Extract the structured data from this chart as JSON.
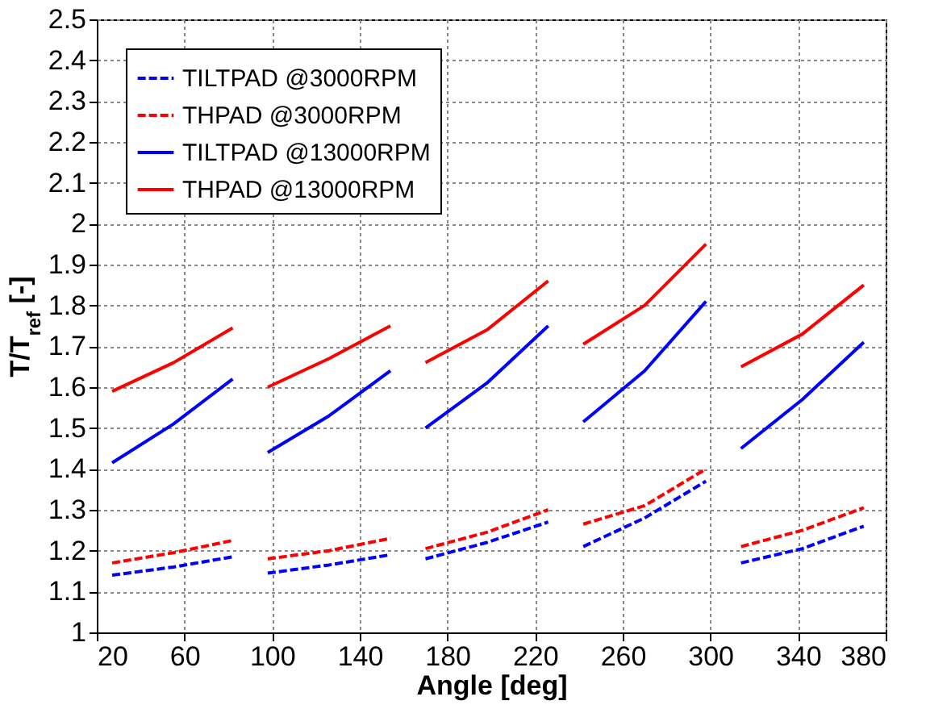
{
  "chart_data": {
    "type": "line",
    "xlabel": "Angle [deg]",
    "ylabel": "T/T$_{ref}$ [-]",
    "x": [
      27,
      55,
      82,
      90,
      98,
      126,
      154,
      162,
      170,
      198,
      226,
      234,
      242,
      270,
      298,
      306,
      314,
      342,
      370
    ],
    "series": [
      {
        "name": "TILTPAD @3000RPM",
        "color": "#0000ff",
        "line_style": "dashed",
        "values": [
          1.14,
          1.16,
          1.185,
          null,
          1.145,
          1.165,
          1.19,
          null,
          1.18,
          1.22,
          1.27,
          null,
          1.21,
          1.28,
          1.37,
          null,
          1.17,
          1.205,
          1.26
        ]
      },
      {
        "name": "THPAD @3000RPM",
        "color": "#ff0000",
        "line_style": "dashed",
        "values": [
          1.17,
          1.195,
          1.225,
          null,
          1.18,
          1.2,
          1.23,
          null,
          1.205,
          1.245,
          1.3,
          null,
          1.265,
          1.31,
          1.4,
          null,
          1.21,
          1.25,
          1.305
        ]
      },
      {
        "name": "TILTPAD @13000RPM",
        "color": "#0000ff",
        "line_style": "solid",
        "values": [
          1.415,
          1.51,
          1.62,
          null,
          1.44,
          1.53,
          1.64,
          null,
          1.5,
          1.61,
          1.75,
          null,
          1.515,
          1.64,
          1.81,
          null,
          1.45,
          1.57,
          1.71
        ]
      },
      {
        "name": "THPAD @13000RPM",
        "color": "#ff0000",
        "line_style": "solid",
        "values": [
          1.59,
          1.66,
          1.745,
          null,
          1.6,
          1.67,
          1.75,
          null,
          1.66,
          1.74,
          1.86,
          null,
          1.705,
          1.8,
          1.95,
          null,
          1.65,
          1.73,
          1.85
        ]
      }
    ],
    "xlim": [
      20,
      380
    ],
    "xticks": [
      20,
      60,
      100,
      140,
      180,
      220,
      260,
      300,
      340,
      380
    ],
    "ylim": [
      1,
      2.5
    ],
    "yticks": [
      1,
      1.1,
      1.2,
      1.3,
      1.4,
      1.5,
      1.6,
      1.7,
      1.8,
      1.9,
      2,
      2.1,
      2.2,
      2.3,
      2.4,
      2.5
    ],
    "grid": true,
    "legend": "top left",
    "marker": "none"
  }
}
